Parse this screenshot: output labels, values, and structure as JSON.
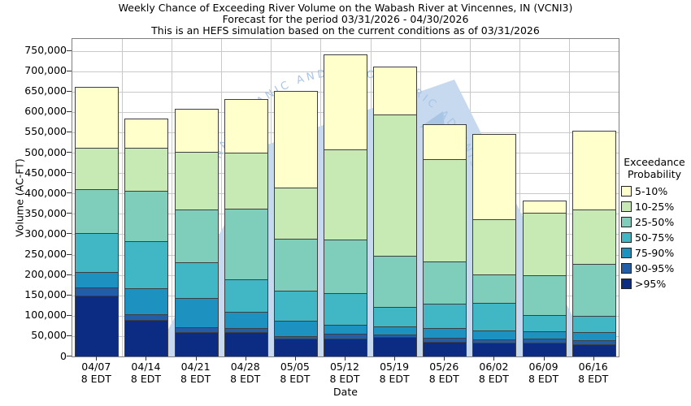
{
  "title": {
    "line1": "Weekly Chance of Exceeding River Volume on the Wabash River at Vincennes, IN (VCNI3)",
    "line2": "Forecast for the period 03/31/2026 - 04/30/2026",
    "line3": "This is an HEFS simulation based on the current conditions as of 03/31/2026"
  },
  "y_axis": {
    "label": "Volume (AC-FT)",
    "tick_labels": [
      "0",
      "50,000",
      "100,000",
      "150,000",
      "200,000",
      "250,000",
      "300,000",
      "350,000",
      "400,000",
      "450,000",
      "500,000",
      "550,000",
      "600,000",
      "650,000",
      "700,000",
      "750,000"
    ],
    "tick_values": [
      0,
      50000,
      100000,
      150000,
      200000,
      250000,
      300000,
      350000,
      400000,
      450000,
      500000,
      550000,
      600000,
      650000,
      700000,
      750000
    ]
  },
  "x_axis": {
    "label": "Date",
    "tick_sub_label": "8 EDT"
  },
  "legend": {
    "title_line1": "Exceedance",
    "title_line2": "Probability",
    "items": [
      {
        "label": "5-10%",
        "color": "#ffffcc"
      },
      {
        "label": "10-25%",
        "color": "#c7e9b4"
      },
      {
        "label": "25-50%",
        "color": "#7fcdbb"
      },
      {
        "label": "50-75%",
        "color": "#41b6c4"
      },
      {
        "label": "75-90%",
        "color": "#1d91c0"
      },
      {
        "label": "90-95%",
        "color": "#225ea8"
      },
      {
        "label": ">95%",
        "color": "#0c2c84"
      }
    ]
  },
  "watermark": {
    "text": "NATIONAL OCEANIC AND ATMOSPHERIC ADMINISTRATION",
    "text_color": "#a9c5e5",
    "shape_color": "#c6d9ef"
  },
  "chart_data": {
    "type": "bar",
    "stacked": true,
    "title": "Weekly Chance of Exceeding River Volume on the Wabash River at Vincennes, IN (VCNI3)",
    "xlabel": "Date",
    "ylabel": "Volume (AC-FT)",
    "ylim": [
      0,
      750000
    ],
    "grid": true,
    "legend_position": "right",
    "categories": [
      "04/07",
      "04/14",
      "04/21",
      "04/28",
      "05/05",
      "05/12",
      "05/19",
      "05/26",
      "06/02",
      "06/09",
      "06/16"
    ],
    "series_note": "values are cumulative band tops in AC-FT, listed bottom band first",
    "series": [
      {
        "name": ">95%",
        "color": "#0c2c84",
        "cumulative_tops": [
          150000,
          90000,
          59000,
          59000,
          43000,
          44000,
          47000,
          36000,
          34000,
          34000,
          30000
        ]
      },
      {
        "name": "90-95%",
        "color": "#225ea8",
        "cumulative_tops": [
          170000,
          104000,
          71000,
          70000,
          50000,
          55000,
          54000,
          46000,
          42000,
          44000,
          40000
        ]
      },
      {
        "name": "75-90%",
        "color": "#1d91c0",
        "cumulative_tops": [
          207000,
          167000,
          144000,
          110000,
          87000,
          78000,
          74000,
          69000,
          64000,
          61000,
          59000
        ]
      },
      {
        "name": "50-75%",
        "color": "#41b6c4",
        "cumulative_tops": [
          302000,
          282000,
          232000,
          190000,
          161000,
          155000,
          122000,
          129000,
          131000,
          101000,
          100000
        ]
      },
      {
        "name": "25-50%",
        "color": "#7fcdbb",
        "cumulative_tops": [
          410000,
          406000,
          361000,
          363000,
          288000,
          287000,
          248000,
          233000,
          202000,
          199000,
          228000
        ]
      },
      {
        "name": "10-25%",
        "color": "#c7e9b4",
        "cumulative_tops": [
          512000,
          512000,
          502000,
          500000,
          415000,
          509000,
          593000,
          485000,
          337000,
          353000,
          360000
        ]
      },
      {
        "name": "5-10%",
        "color": "#ffffcc",
        "cumulative_tops": [
          662000,
          584000,
          607000,
          632000,
          652000,
          742000,
          711000,
          570000,
          546000,
          383000,
          554000
        ]
      }
    ]
  }
}
